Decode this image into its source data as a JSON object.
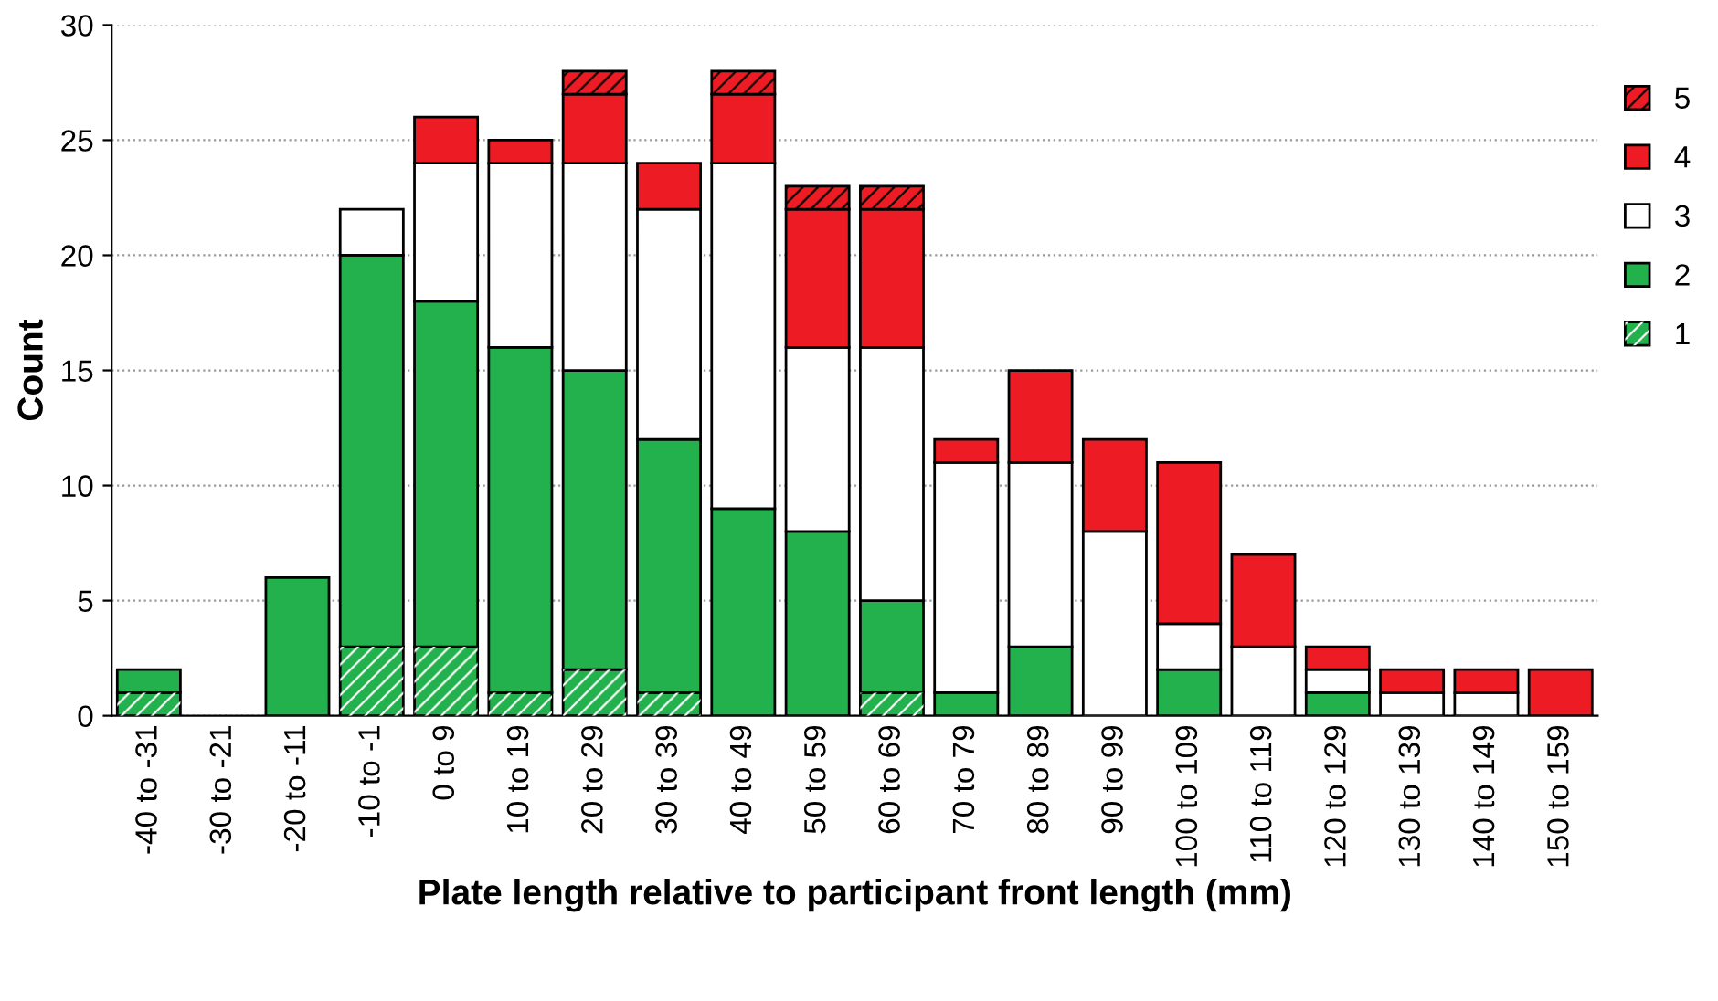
{
  "chart_data": {
    "type": "bar",
    "stacked": true,
    "xlabel": "Plate length relative to participant front length (mm)",
    "ylabel": "Count",
    "categories": [
      "-40 to -31",
      "-30 to -21",
      "-20 to -11",
      "-10 to -1",
      "0 to 9",
      "10 to 19",
      "20 to 29",
      "30 to 39",
      "40 to 49",
      "50 to 59",
      "60 to 69",
      "70 to 79",
      "80 to 89",
      "90 to 99",
      "100 to 109",
      "110 to 119",
      "120 to 129",
      "130 to 139",
      "140 to 149",
      "150 to 159"
    ],
    "series": [
      {
        "name": "1",
        "color": "#22b14c",
        "values": [
          1,
          0,
          0,
          3,
          3,
          1,
          2,
          1,
          0,
          0,
          1,
          0,
          0,
          0,
          0,
          0,
          0,
          0,
          0,
          0
        ]
      },
      {
        "name": "2",
        "color": "#22b14c",
        "values": [
          1,
          0,
          6,
          17,
          15,
          15,
          13,
          11,
          9,
          8,
          4,
          1,
          3,
          0,
          2,
          0,
          1,
          0,
          0,
          0
        ]
      },
      {
        "name": "3",
        "color": "#ffffff",
        "values": [
          0,
          0,
          0,
          2,
          6,
          8,
          9,
          10,
          15,
          8,
          11,
          10,
          8,
          8,
          2,
          3,
          1,
          1,
          1,
          0
        ]
      },
      {
        "name": "4",
        "color": "#ed1c24",
        "values": [
          0,
          0,
          0,
          0,
          2,
          1,
          3,
          2,
          3,
          6,
          6,
          1,
          4,
          4,
          7,
          4,
          1,
          1,
          1,
          2
        ]
      },
      {
        "name": "5",
        "color": "#ed1c24",
        "values": [
          0,
          0,
          0,
          0,
          0,
          0,
          1,
          0,
          1,
          1,
          1,
          0,
          0,
          0,
          0,
          0,
          0,
          0,
          0,
          0
        ]
      }
    ],
    "ylim": [
      0,
      30
    ],
    "yticks": [
      0,
      5,
      10,
      15,
      20,
      25,
      30
    ],
    "grid": "y",
    "legend": "right"
  }
}
